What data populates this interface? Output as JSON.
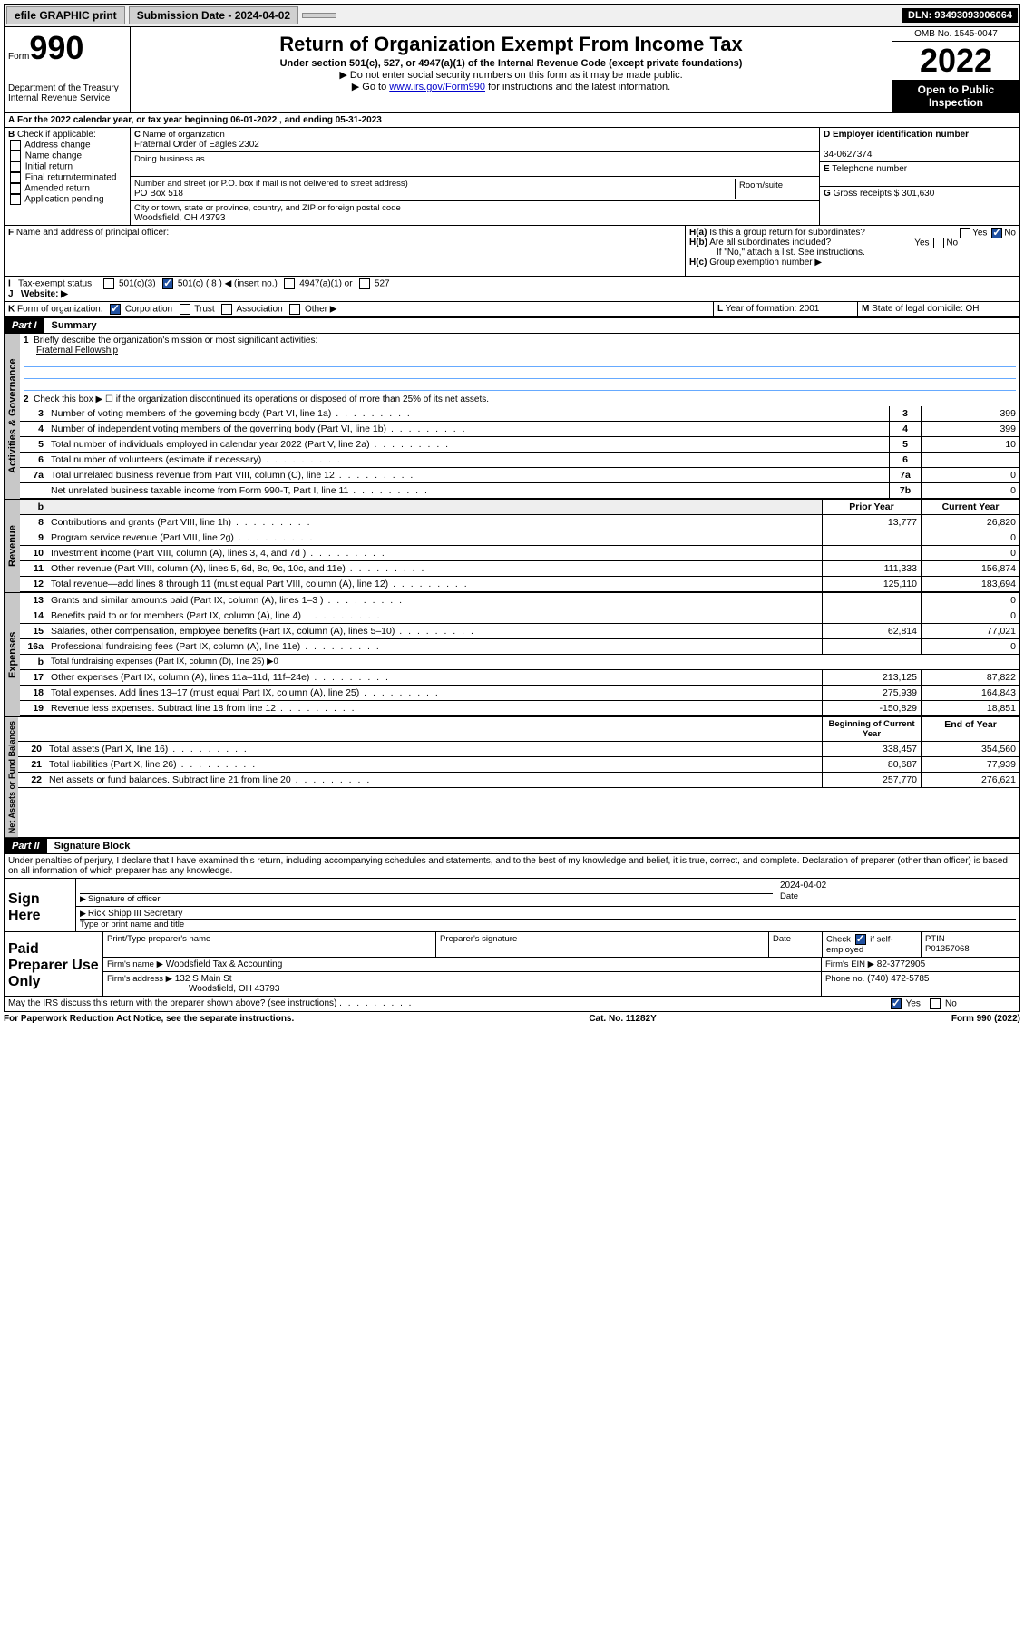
{
  "topbar": {
    "efile": "efile GRAPHIC print",
    "submission": "Submission Date - 2024-04-02",
    "dln": "DLN: 93493093006064"
  },
  "header": {
    "form_prefix": "Form",
    "form_number": "990",
    "dept": "Department of the Treasury",
    "irs": "Internal Revenue Service",
    "title": "Return of Organization Exempt From Income Tax",
    "subtitle": "Under section 501(c), 527, or 4947(a)(1) of the Internal Revenue Code (except private foundations)",
    "note1": "▶ Do not enter social security numbers on this form as it may be made public.",
    "note2_pre": "▶ Go to ",
    "note2_link": "www.irs.gov/Form990",
    "note2_post": " for instructions and the latest information.",
    "omb": "OMB No. 1545-0047",
    "year": "2022",
    "open": "Open to Public Inspection"
  },
  "A": {
    "text": "For the 2022 calendar year, or tax year beginning 06-01-2022   , and ending 05-31-2023"
  },
  "B": {
    "label": "Check if applicable:",
    "opts": [
      "Address change",
      "Name change",
      "Initial return",
      "Final return/terminated",
      "Amended return",
      "Application pending"
    ]
  },
  "C": {
    "name_label": "Name of organization",
    "name": "Fraternal Order of Eagles 2302",
    "dba_label": "Doing business as",
    "addr_label": "Number and street (or P.O. box if mail is not delivered to street address)",
    "room_label": "Room/suite",
    "addr": "PO Box 518",
    "city_label": "City or town, state or province, country, and ZIP or foreign postal code",
    "city": "Woodsfield, OH  43793"
  },
  "D": {
    "label": "Employer identification number",
    "value": "34-0627374"
  },
  "E": {
    "label": "Telephone number",
    "value": ""
  },
  "G": {
    "label": "Gross receipts $",
    "value": "301,630"
  },
  "F": {
    "label": "Name and address of principal officer:"
  },
  "H": {
    "a": "Is this a group return for subordinates?",
    "b": "Are all subordinates included?",
    "b_note": "If \"No,\" attach a list. See instructions.",
    "c": "Group exemption number ▶"
  },
  "I": {
    "label": "Tax-exempt status:",
    "opts": [
      "501(c)(3)",
      "501(c) ( 8 ) ◀ (insert no.)",
      "4947(a)(1) or",
      "527"
    ]
  },
  "J": {
    "label": "Website: ▶"
  },
  "K": {
    "label": "Form of organization:",
    "opts": [
      "Corporation",
      "Trust",
      "Association",
      "Other ▶"
    ]
  },
  "L": {
    "label": "Year of formation:",
    "value": "2001"
  },
  "M": {
    "label": "State of legal domicile:",
    "value": "OH"
  },
  "part1": {
    "header": "Part I",
    "title": "Summary",
    "q1": "Briefly describe the organization's mission or most significant activities:",
    "q1_ans": "Fraternal Fellowship",
    "q2": "Check this box ▶ ☐  if the organization discontinued its operations or disposed of more than 25% of its net assets.",
    "lines_gov": [
      {
        "n": "3",
        "t": "Number of voting members of the governing body (Part VI, line 1a)",
        "box": "3",
        "v": "399"
      },
      {
        "n": "4",
        "t": "Number of independent voting members of the governing body (Part VI, line 1b)",
        "box": "4",
        "v": "399"
      },
      {
        "n": "5",
        "t": "Total number of individuals employed in calendar year 2022 (Part V, line 2a)",
        "box": "5",
        "v": "10"
      },
      {
        "n": "6",
        "t": "Total number of volunteers (estimate if necessary)",
        "box": "6",
        "v": ""
      },
      {
        "n": "7a",
        "t": "Total unrelated business revenue from Part VIII, column (C), line 12",
        "box": "7a",
        "v": "0"
      },
      {
        "n": "",
        "t": "Net unrelated business taxable income from Form 990-T, Part I, line 11",
        "box": "7b",
        "v": "0"
      }
    ],
    "col_prior": "Prior Year",
    "col_current": "Current Year",
    "lines_rev": [
      {
        "n": "8",
        "t": "Contributions and grants (Part VIII, line 1h)",
        "p": "13,777",
        "c": "26,820"
      },
      {
        "n": "9",
        "t": "Program service revenue (Part VIII, line 2g)",
        "p": "",
        "c": "0"
      },
      {
        "n": "10",
        "t": "Investment income (Part VIII, column (A), lines 3, 4, and 7d )",
        "p": "",
        "c": "0"
      },
      {
        "n": "11",
        "t": "Other revenue (Part VIII, column (A), lines 5, 6d, 8c, 9c, 10c, and 11e)",
        "p": "111,333",
        "c": "156,874"
      },
      {
        "n": "12",
        "t": "Total revenue—add lines 8 through 11 (must equal Part VIII, column (A), line 12)",
        "p": "125,110",
        "c": "183,694"
      }
    ],
    "lines_exp": [
      {
        "n": "13",
        "t": "Grants and similar amounts paid (Part IX, column (A), lines 1–3 )",
        "p": "",
        "c": "0"
      },
      {
        "n": "14",
        "t": "Benefits paid to or for members (Part IX, column (A), line 4)",
        "p": "",
        "c": "0"
      },
      {
        "n": "15",
        "t": "Salaries, other compensation, employee benefits (Part IX, column (A), lines 5–10)",
        "p": "62,814",
        "c": "77,021"
      },
      {
        "n": "16a",
        "t": "Professional fundraising fees (Part IX, column (A), line 11e)",
        "p": "",
        "c": "0"
      },
      {
        "n": "b",
        "t": "Total fundraising expenses (Part IX, column (D), line 25) ▶0",
        "p": "—",
        "c": "—"
      },
      {
        "n": "17",
        "t": "Other expenses (Part IX, column (A), lines 11a–11d, 11f–24e)",
        "p": "213,125",
        "c": "87,822"
      },
      {
        "n": "18",
        "t": "Total expenses. Add lines 13–17 (must equal Part IX, column (A), line 25)",
        "p": "275,939",
        "c": "164,843"
      },
      {
        "n": "19",
        "t": "Revenue less expenses. Subtract line 18 from line 12",
        "p": "-150,829",
        "c": "18,851"
      }
    ],
    "col_begin": "Beginning of Current Year",
    "col_end": "End of Year",
    "lines_net": [
      {
        "n": "20",
        "t": "Total assets (Part X, line 16)",
        "p": "338,457",
        "c": "354,560"
      },
      {
        "n": "21",
        "t": "Total liabilities (Part X, line 26)",
        "p": "80,687",
        "c": "77,939"
      },
      {
        "n": "22",
        "t": "Net assets or fund balances. Subtract line 21 from line 20",
        "p": "257,770",
        "c": "276,621"
      }
    ]
  },
  "part2": {
    "header": "Part II",
    "title": "Signature Block",
    "decl": "Under penalties of perjury, I declare that I have examined this return, including accompanying schedules and statements, and to the best of my knowledge and belief, it is true, correct, and complete. Declaration of preparer (other than officer) is based on all information of which preparer has any knowledge."
  },
  "sign": {
    "here": "Sign Here",
    "sig_label": "Signature of officer",
    "date_label": "Date",
    "date": "2024-04-02",
    "name": "Rick Shipp III Secretary",
    "name_label": "Type or print name and title"
  },
  "paid": {
    "title": "Paid Preparer Use Only",
    "h1": "Print/Type preparer's name",
    "h2": "Preparer's signature",
    "h3": "Date",
    "h4_pre": "Check",
    "h4_post": "if self-employed",
    "h5": "PTIN",
    "ptin": "P01357068",
    "firm_label": "Firm's name   ▶",
    "firm": "Woodsfield Tax & Accounting",
    "ein_label": "Firm's EIN ▶",
    "ein": "82-3772905",
    "addr_label": "Firm's address ▶",
    "addr1": "132 S Main St",
    "addr2": "Woodsfield, OH  43793",
    "phone_label": "Phone no.",
    "phone": "(740) 472-5785"
  },
  "may": "May the IRS discuss this return with the preparer shown above? (see instructions)",
  "footer": {
    "left": "For Paperwork Reduction Act Notice, see the separate instructions.",
    "mid": "Cat. No. 11282Y",
    "right": "Form 990 (2022)"
  },
  "vtabs": {
    "gov": "Activities & Governance",
    "rev": "Revenue",
    "exp": "Expenses",
    "net": "Net Assets or Fund Balances"
  }
}
